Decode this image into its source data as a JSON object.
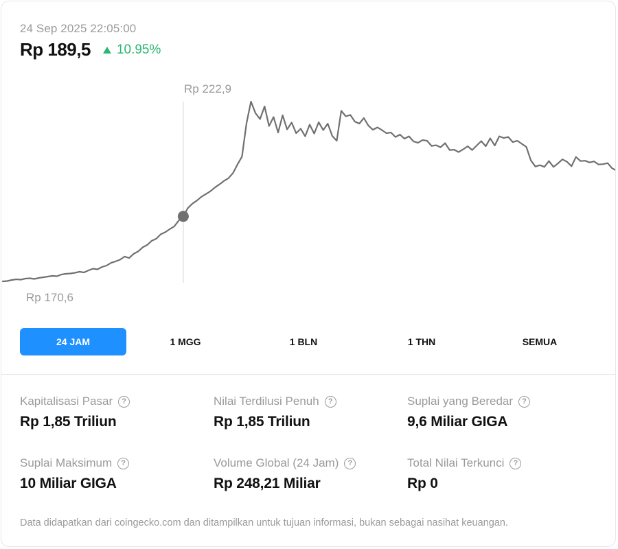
{
  "header": {
    "timestamp": "24 Sep 2025 22:05:00",
    "price": "Rp 189,5",
    "change": "10.95%",
    "change_color": "#2bb673"
  },
  "chart_data": {
    "type": "line",
    "label_high": "Rp 222,9",
    "label_low": "Rp 170,6",
    "line_color": "#707070",
    "marker_color": "#707070",
    "y": [
      170.6,
      170.7,
      171.0,
      171.2,
      171.1,
      171.4,
      171.5,
      171.3,
      171.6,
      171.8,
      172.0,
      172.2,
      172.1,
      172.6,
      172.8,
      172.9,
      173.1,
      173.4,
      173.2,
      173.8,
      174.3,
      174.1,
      174.8,
      175.2,
      176.0,
      176.4,
      176.9,
      177.8,
      177.4,
      178.6,
      179.3,
      180.5,
      181.2,
      182.4,
      183.0,
      184.3,
      184.9,
      185.8,
      186.6,
      188.3,
      189.5,
      191.9,
      193.2,
      194.1,
      195.2,
      196.0,
      196.8,
      197.9,
      198.8,
      199.8,
      200.6,
      202.1,
      204.6,
      206.9,
      216.6,
      222.9,
      219.5,
      217.8,
      221.5,
      215.8,
      218.4,
      213.9,
      218.9,
      214.8,
      216.8,
      213.7,
      215.0,
      212.8,
      216.2,
      213.6,
      216.9,
      214.6,
      216.5,
      212.9,
      211.5,
      220.2,
      218.6,
      219.0,
      217.1,
      216.5,
      218.1,
      215.9,
      214.7,
      215.4,
      214.6,
      213.7,
      213.9,
      212.6,
      213.3,
      212.1,
      212.8,
      211.3,
      210.9,
      211.7,
      211.5,
      210.0,
      210.2,
      209.6,
      210.8,
      208.8,
      208.9,
      208.2,
      209.0,
      209.9,
      208.8,
      210.1,
      211.4,
      209.9,
      212.2,
      210.1,
      212.8,
      212.3,
      212.6,
      211.1,
      211.5,
      210.6,
      209.7,
      205.8,
      204.0,
      204.4,
      203.9,
      205.6,
      203.9,
      204.9,
      206.1,
      205.4,
      204.1,
      206.8,
      205.6,
      205.7,
      205.2,
      205.5,
      204.6,
      204.7,
      205.0,
      203.5,
      202.8
    ],
    "marker_index": 40,
    "marker_value": "Rp 189,5"
  },
  "tabs": [
    {
      "label": "24 JAM",
      "active": true
    },
    {
      "label": "1 MGG",
      "active": false
    },
    {
      "label": "1 BLN",
      "active": false
    },
    {
      "label": "1 THN",
      "active": false
    },
    {
      "label": "SEMUA",
      "active": false
    }
  ],
  "stats": [
    {
      "label": "Kapitalisasi Pasar",
      "value": "Rp 1,85 Triliun"
    },
    {
      "label": "Nilai Terdilusi Penuh",
      "value": "Rp 1,85 Triliun"
    },
    {
      "label": "Suplai yang Beredar",
      "value": "9,6 Miliar GIGA"
    },
    {
      "label": "Suplai Maksimum",
      "value": "10 Miliar GIGA"
    },
    {
      "label": "Volume Global (24 Jam)",
      "value": "Rp 248,21 Miliar"
    },
    {
      "label": "Total Nilai Terkunci",
      "value": "Rp 0"
    }
  ],
  "info_icon_glyph": "?",
  "footnote": "Data didapatkan dari coingecko.com dan ditampilkan untuk tujuan informasi, bukan sebagai nasihat keuangan."
}
